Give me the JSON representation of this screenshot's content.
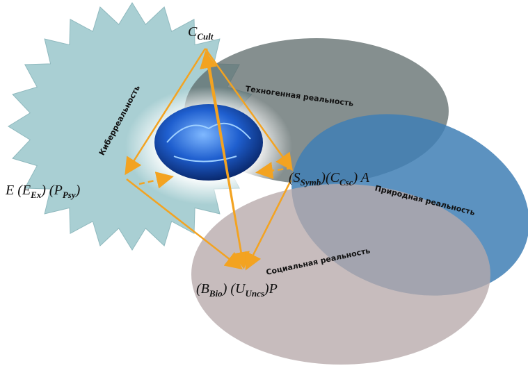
{
  "regions": [
    {
      "label": "Киберреальность"
    },
    {
      "label": "Техногенная реальность"
    },
    {
      "label": "Природная реальность"
    },
    {
      "label": "Социальная реальность"
    }
  ],
  "nodes": [
    {
      "parts": [
        {
          "text": "C"
        },
        {
          "sub": "Cult"
        }
      ]
    },
    {
      "parts": [
        {
          "text": "E (E"
        },
        {
          "sub": "Ex"
        },
        {
          "text": ") (P"
        },
        {
          "sub": "Psy"
        },
        {
          "text": ")"
        }
      ]
    },
    {
      "parts": [
        {
          "text": "(S"
        },
        {
          "sub": "Symb"
        },
        {
          "text": ")(C"
        },
        {
          "sub": "Csc"
        },
        {
          "text": ") A"
        }
      ]
    },
    {
      "parts": [
        {
          "text": "(B"
        },
        {
          "sub": "Bio"
        },
        {
          "text": ") (U"
        },
        {
          "sub": "Uncs"
        },
        {
          "text": ")P"
        }
      ]
    }
  ]
}
